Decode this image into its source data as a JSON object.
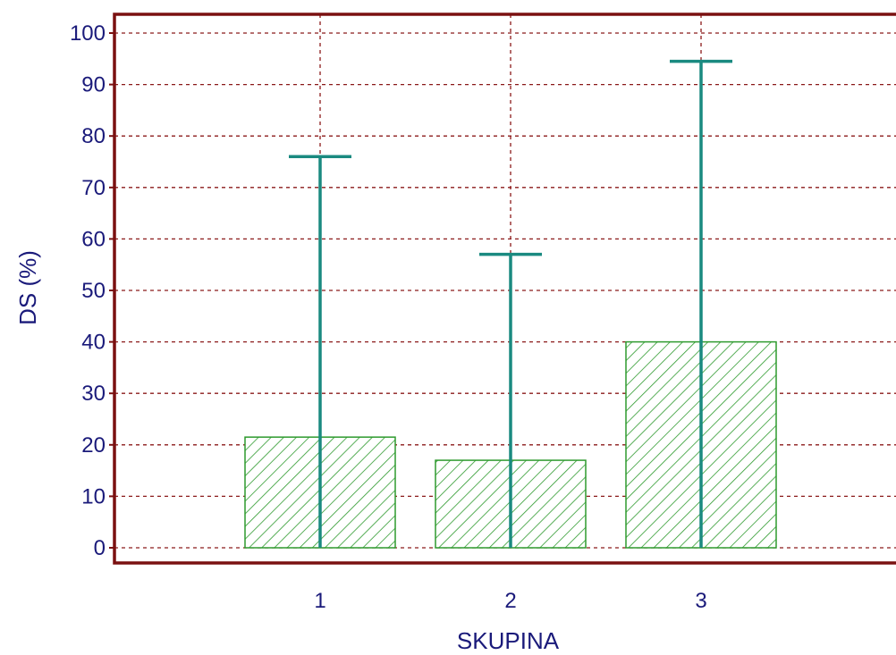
{
  "chart_data": {
    "type": "bar",
    "xlabel": "SKUPINA",
    "ylabel": "DS (%)",
    "categories": [
      "1",
      "2",
      "3"
    ],
    "values": [
      21.5,
      17,
      40
    ],
    "error_upper": [
      76,
      57,
      94.5
    ],
    "ylim": [
      0,
      100
    ],
    "yticks": [
      0,
      10,
      20,
      30,
      40,
      50,
      60,
      70,
      80,
      90,
      100
    ],
    "grid": true,
    "bar_pattern": "diagonal-hatch",
    "colors": {
      "bar_fill": "#2e9a2e",
      "bar_stroke": "#2e9a2e",
      "error_bar": "#1a8a80",
      "frame": "#7a1010",
      "grid": "#8b1a1a",
      "text": "#1a1a7a"
    }
  }
}
